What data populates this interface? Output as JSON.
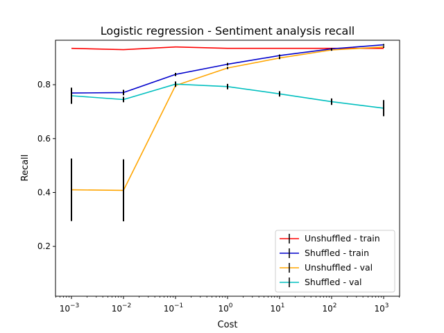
{
  "chart_data": {
    "type": "line",
    "title": "Logistic regression - Sentiment analysis recall",
    "xlabel": "Cost",
    "ylabel": "Recall",
    "xscale": "log",
    "x": [
      0.001,
      0.01,
      0.1,
      1,
      10,
      100,
      1000
    ],
    "xticks": [
      {
        "value": 0.001,
        "base": "10",
        "exp": "−3"
      },
      {
        "value": 0.01,
        "base": "10",
        "exp": "−2"
      },
      {
        "value": 0.1,
        "base": "10",
        "exp": "−1"
      },
      {
        "value": 1,
        "base": "10",
        "exp": "0"
      },
      {
        "value": 10,
        "base": "10",
        "exp": "1"
      },
      {
        "value": 100,
        "base": "10",
        "exp": "2"
      },
      {
        "value": 1000,
        "base": "10",
        "exp": "3"
      }
    ],
    "yticks": [
      {
        "value": 0.2,
        "label": "0.2"
      },
      {
        "value": 0.4,
        "label": "0.4"
      },
      {
        "value": 0.6,
        "label": "0.6"
      },
      {
        "value": 0.8,
        "label": "0.8"
      }
    ],
    "ylim": [
      0.015,
      0.965
    ],
    "grid": false,
    "legend_position": "lower-right",
    "series": [
      {
        "name": "Unshuffled - train",
        "color": "#ff0000",
        "values": [
          0.935,
          0.93,
          0.94,
          0.935,
          0.935,
          0.935,
          0.935
        ],
        "errors": [
          0,
          0,
          0,
          0,
          0,
          0,
          0
        ]
      },
      {
        "name": "Shuffled - train",
        "color": "#0000cc",
        "values": [
          0.769,
          0.771,
          0.838,
          0.876,
          0.908,
          0.933,
          0.948
        ],
        "errors": [
          0.01,
          0.01,
          0.006,
          0.005,
          0.004,
          0.003,
          0.003
        ]
      },
      {
        "name": "Unshuffled - val",
        "color": "#ffa500",
        "values": [
          0.41,
          0.408,
          0.797,
          0.862,
          0.899,
          0.929,
          0.94
        ],
        "errors": [
          0.116,
          0.115,
          0.005,
          0.004,
          0.004,
          0.003,
          0.003
        ]
      },
      {
        "name": "Shuffled - val",
        "color": "#00bfbf",
        "values": [
          0.759,
          0.745,
          0.802,
          0.793,
          0.766,
          0.737,
          0.713
        ],
        "errors": [
          0.03,
          0.01,
          0.01,
          0.01,
          0.01,
          0.012,
          0.03
        ]
      }
    ],
    "error_bars": {
      "color": "#000000"
    }
  }
}
